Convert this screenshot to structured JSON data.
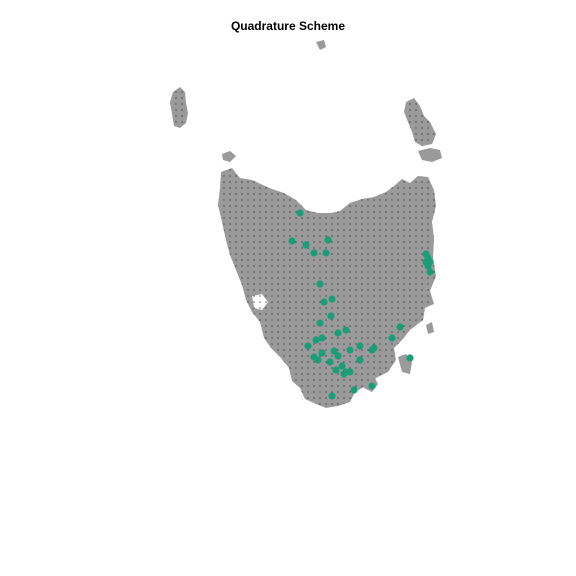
{
  "title": "Quadrature Scheme",
  "colors": {
    "land": "#9a9a9a",
    "dummy_points": "#1a1a1a",
    "data_points": "#1b9e77",
    "background": "#ffffff"
  },
  "legend": {
    "shown": false
  },
  "map": {
    "region": "Tasmania",
    "land_style": "gray-fill",
    "dummy_point_style": "small-black-dots",
    "data_point_style": "large-teal-dots",
    "data_point_count": 44
  }
}
